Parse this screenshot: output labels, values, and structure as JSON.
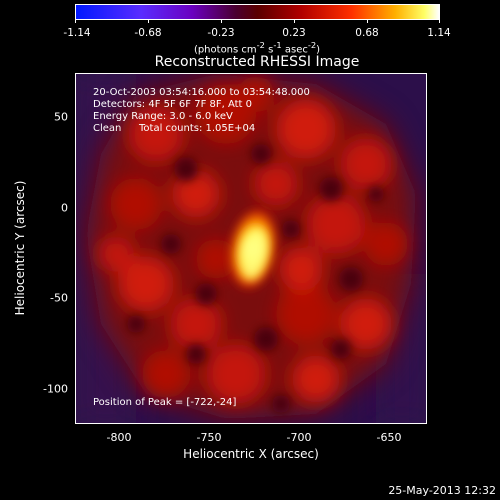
{
  "colorbar": {
    "ticks": [
      "-1.14",
      "-0.68",
      "-0.23",
      "0.23",
      "0.68",
      "1.14"
    ],
    "unit_html": "(photons cm<sup>-2</sup> s<sup>-1</sup> asec<sup>-2</sup>)"
  },
  "chart_data": {
    "type": "heatmap",
    "title": "Reconstructed RHESSI Image",
    "xlabel": "Heliocentric X (arcsec)",
    "ylabel": "Heliocentric Y (arcsec)",
    "xlim": [
      -820,
      -628
    ],
    "ylim": [
      -118,
      74
    ],
    "x_ticks": [
      "-800",
      "-750",
      "-700",
      "-650"
    ],
    "y_ticks": [
      "50",
      "0",
      "-50",
      "-100"
    ],
    "colorbar_range": [
      -1.14,
      1.14
    ],
    "peak_position": [
      -722,
      -24
    ],
    "annotations": {
      "time": "20-Oct-2003 03:54:16.000 to 03:54:48.000",
      "detectors": "Detectors: 4F 5F 6F 7F 8F, Att 0",
      "energy": "Energy Range: 3.0 - 6.0 keV",
      "clean_label": "Clean",
      "counts": "Total counts: 1.05E+04",
      "peak": "Position of Peak = [-722,-24]"
    }
  },
  "footer": {
    "date": "25-May-2013 12:32"
  }
}
